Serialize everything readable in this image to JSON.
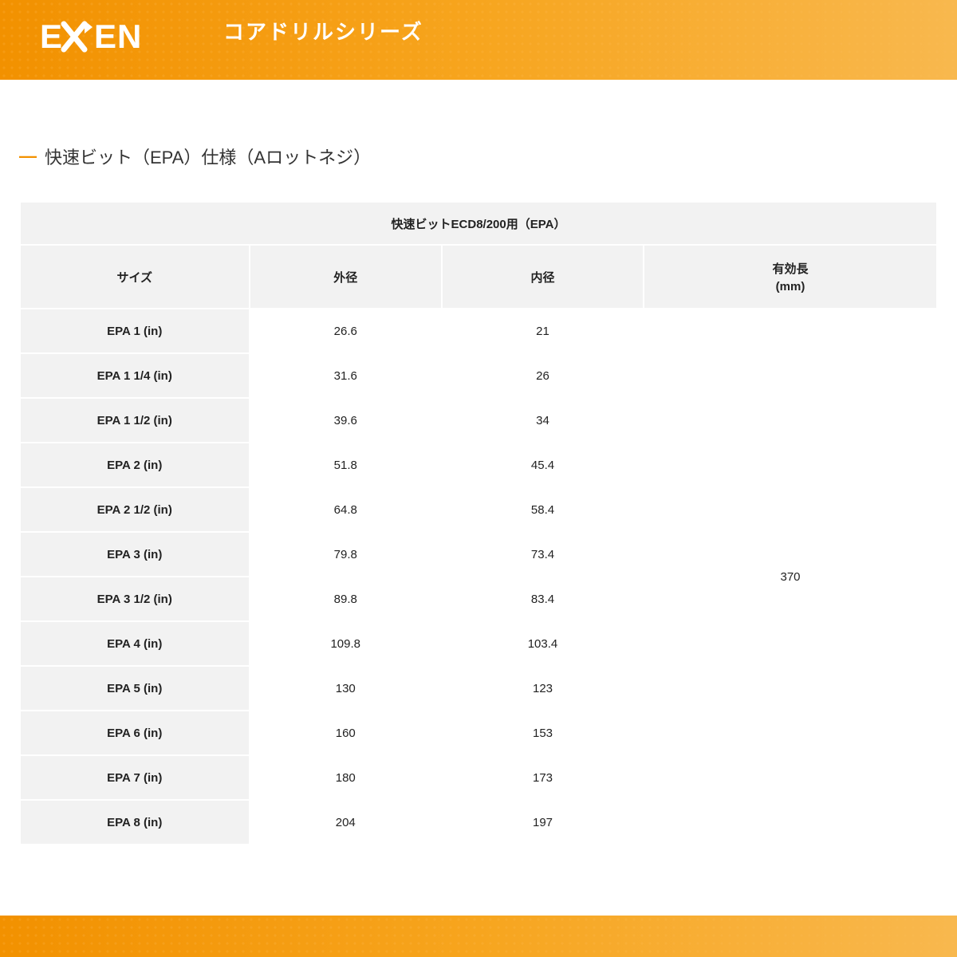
{
  "logo_text": "EXEN",
  "page_title": "コアドリルシリーズ",
  "section_title": "快速ビット（EPA）仕様（Aロットネジ）",
  "colors": {
    "orange_start": "#f29100",
    "orange_end": "#f8b84e",
    "header_bg": "#f2f2f2",
    "border": "#ffffff",
    "text": "#222222"
  },
  "table": {
    "title": "快速ビットECD8/200用（EPA）",
    "columns": {
      "size": "サイズ",
      "outer_diameter": "外径",
      "inner_diameter": "内径",
      "effective_length": "有効長",
      "effective_length_unit": "(mm)"
    },
    "effective_length_value": "370",
    "column_widths_pct": [
      25,
      21,
      22,
      32
    ],
    "rows": [
      {
        "size": "EPA 1 (in)",
        "outer": "26.6",
        "inner": "21"
      },
      {
        "size": "EPA 1 1/4 (in)",
        "outer": "31.6",
        "inner": "26"
      },
      {
        "size": "EPA 1 1/2 (in)",
        "outer": "39.6",
        "inner": "34"
      },
      {
        "size": "EPA 2 (in)",
        "outer": "51.8",
        "inner": "45.4"
      },
      {
        "size": "EPA 2 1/2 (in)",
        "outer": "64.8",
        "inner": "58.4"
      },
      {
        "size": "EPA 3 (in)",
        "outer": "79.8",
        "inner": "73.4"
      },
      {
        "size": "EPA 3 1/2 (in)",
        "outer": "89.8",
        "inner": "83.4"
      },
      {
        "size": "EPA 4 (in)",
        "outer": "109.8",
        "inner": "103.4"
      },
      {
        "size": "EPA 5 (in)",
        "outer": "130",
        "inner": "123"
      },
      {
        "size": "EPA 6 (in)",
        "outer": "160",
        "inner": "153"
      },
      {
        "size": "EPA 7 (in)",
        "outer": "180",
        "inner": "173"
      },
      {
        "size": "EPA 8 (in)",
        "outer": "204",
        "inner": "197"
      }
    ]
  }
}
